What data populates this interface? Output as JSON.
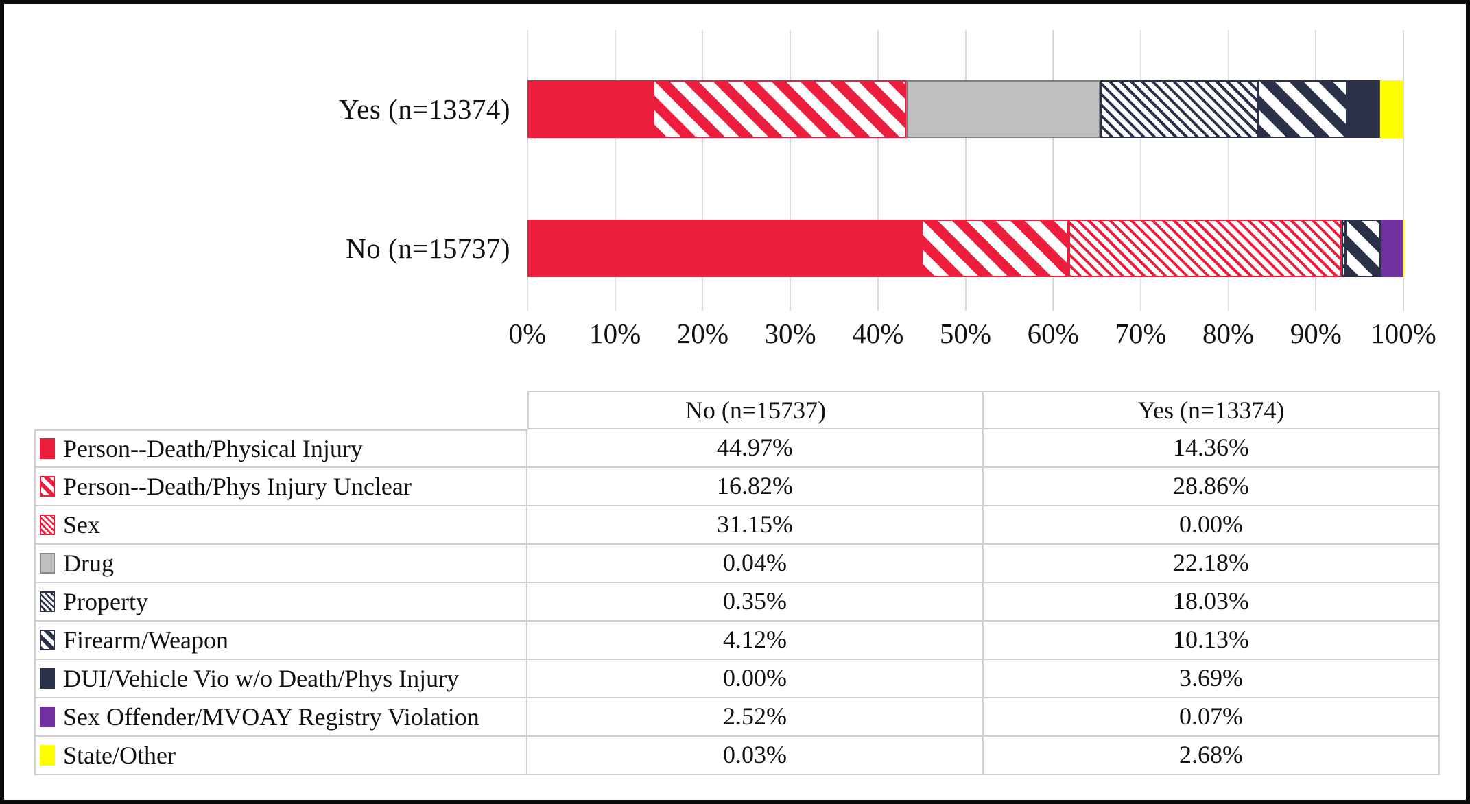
{
  "chart_data": {
    "type": "bar",
    "orientation": "horizontal",
    "stacked": true,
    "title": "",
    "xlabel": "",
    "ylabel": "",
    "xlim": [
      0,
      100
    ],
    "grid": "vertical",
    "x_ticks": [
      "0%",
      "10%",
      "20%",
      "30%",
      "40%",
      "50%",
      "60%",
      "70%",
      "80%",
      "90%",
      "100%"
    ],
    "bars": [
      {
        "key": "yes",
        "label": "Yes (n=13374)"
      },
      {
        "key": "no",
        "label": "No (n=15737)"
      }
    ],
    "categories": [
      {
        "name": "Person--Death/Physical Injury",
        "pattern": "solid-red",
        "color": "#ed1d3d",
        "no": 44.97,
        "yes": 14.36
      },
      {
        "name": "Person--Death/Phys Injury Unclear",
        "pattern": "hatch-wide-red",
        "color": "#ed1d3d",
        "no": 16.82,
        "yes": 28.86
      },
      {
        "name": "Sex",
        "pattern": "hatch-fine-red",
        "color": "#ed1d3d",
        "no": 31.15,
        "yes": 0.0
      },
      {
        "name": "Drug",
        "pattern": "solid-gray",
        "color": "#bfbfbf",
        "no": 0.04,
        "yes": 22.18
      },
      {
        "name": "Property",
        "pattern": "hatch-fine-navy",
        "color": "#2a3148",
        "no": 0.35,
        "yes": 18.03
      },
      {
        "name": "Firearm/Weapon",
        "pattern": "hatch-wide-navy",
        "color": "#2a3148",
        "no": 4.12,
        "yes": 10.13
      },
      {
        "name": "DUI/Vehicle Vio w/o Death/Phys Injury",
        "pattern": "solid-navy",
        "color": "#2a3148",
        "no": 0.0,
        "yes": 3.69
      },
      {
        "name": "Sex Offender/MVOAY Registry Violation",
        "pattern": "solid-purple",
        "color": "#7030a0",
        "no": 2.52,
        "yes": 0.07
      },
      {
        "name": "State/Other",
        "pattern": "solid-yellow",
        "color": "#ffff00",
        "no": 0.03,
        "yes": 2.68
      }
    ]
  },
  "table": {
    "headers": {
      "no": "No (n=15737)",
      "yes": "Yes (n=13374)"
    },
    "rows": [
      {
        "label": "Person--Death/Physical Injury",
        "no": "44.97%",
        "yes": "14.36%"
      },
      {
        "label": "Person--Death/Phys Injury Unclear",
        "no": "16.82%",
        "yes": "28.86%"
      },
      {
        "label": "Sex",
        "no": "31.15%",
        "yes": "0.00%"
      },
      {
        "label": "Drug",
        "no": "0.04%",
        "yes": "22.18%"
      },
      {
        "label": "Property",
        "no": "0.35%",
        "yes": "18.03%"
      },
      {
        "label": "Firearm/Weapon",
        "no": "4.12%",
        "yes": "10.13%"
      },
      {
        "label": "DUI/Vehicle Vio w/o Death/Phys Injury",
        "no": "0.00%",
        "yes": "3.69%"
      },
      {
        "label": "Sex Offender/MVOAY Registry Violation",
        "no": "2.52%",
        "yes": "0.07%"
      },
      {
        "label": "State/Other",
        "no": "0.03%",
        "yes": "2.68%"
      }
    ]
  },
  "colors": {
    "red": "#ed1d3d",
    "gray": "#bfbfbf",
    "navy": "#2a3148",
    "purple": "#7030a0",
    "yellow": "#ffff00",
    "gridline": "#d9d9d9",
    "table_border": "#cfcfcf"
  }
}
